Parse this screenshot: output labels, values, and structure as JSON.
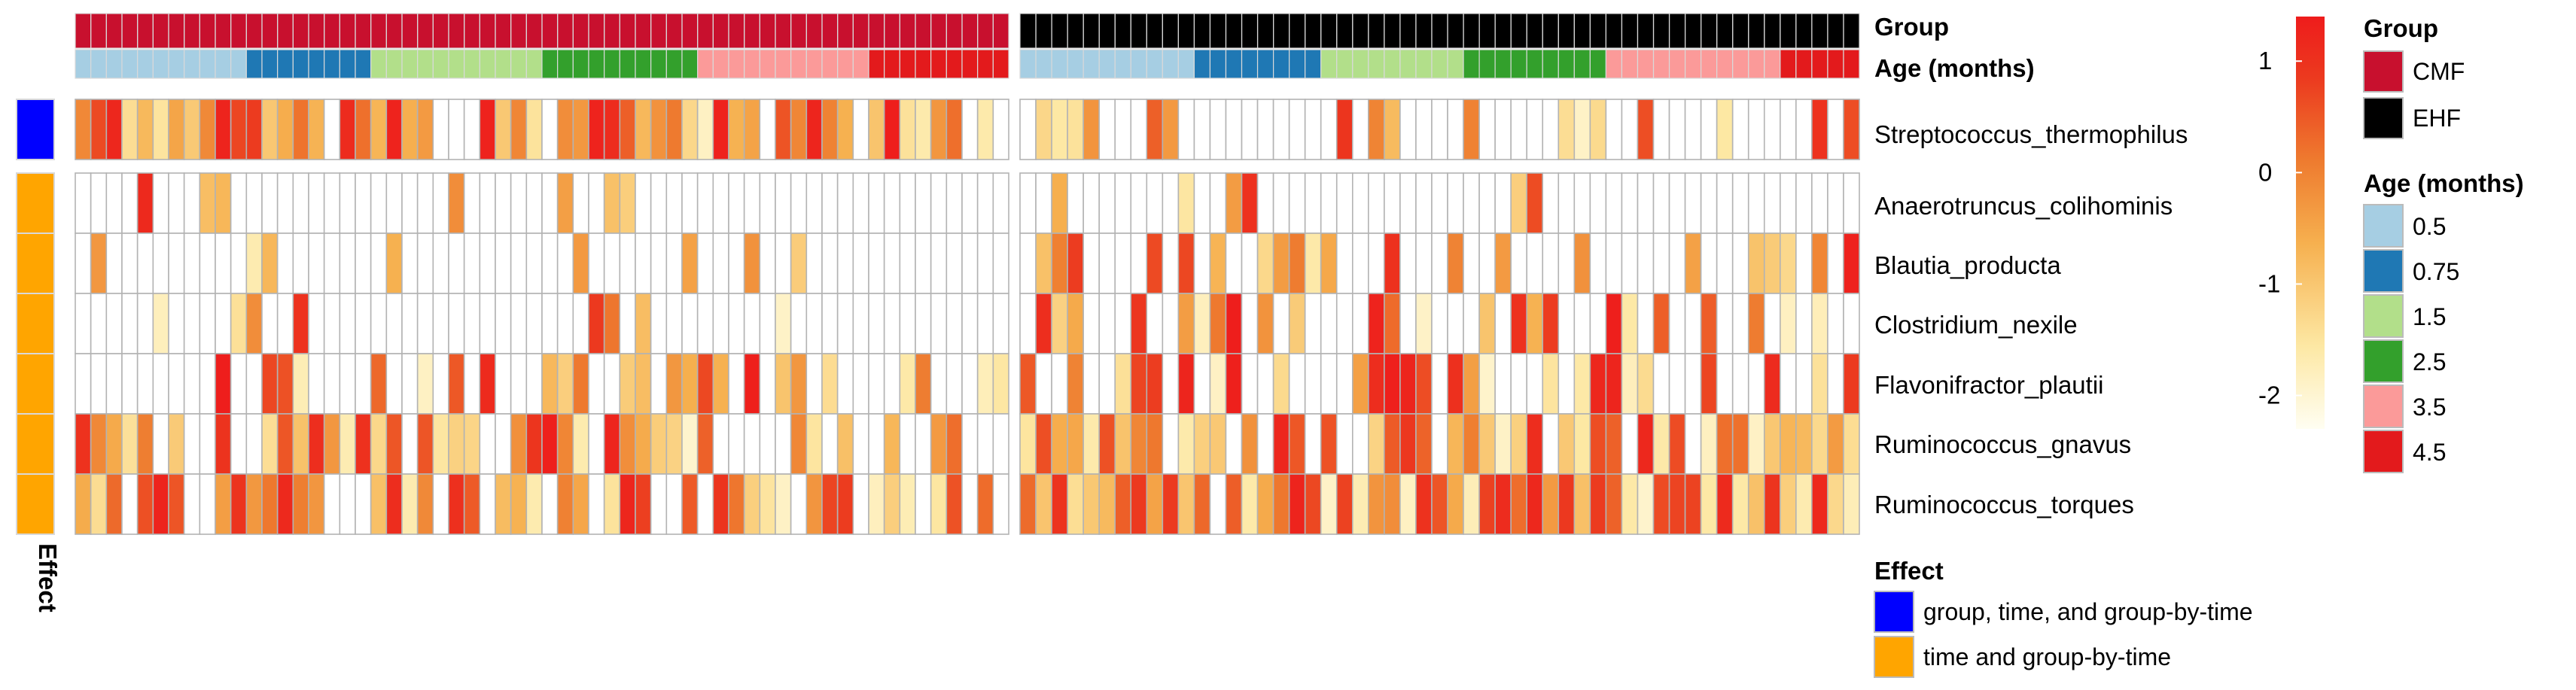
{
  "chart_data": {
    "type": "heatmap",
    "groups": [
      {
        "name": "CMF",
        "columns": 60,
        "age_counts": [
          11,
          8,
          11,
          10,
          11,
          9
        ]
      },
      {
        "name": "EHF",
        "columns": 53,
        "age_counts": [
          11,
          8,
          9,
          9,
          11,
          5
        ]
      }
    ],
    "annotation_labels": {
      "group": "Group",
      "age": "Age (months)"
    },
    "rows": [
      {
        "name": "Streptococcus_thermophilus",
        "effect": "group, time, and group-by-time",
        "cluster": 1
      },
      {
        "name": "Anaerotruncus_colihominis",
        "effect": "time and group-by-time",
        "cluster": 2
      },
      {
        "name": "Blautia_producta",
        "effect": "time and group-by-time",
        "cluster": 2
      },
      {
        "name": "Clostridium_nexile",
        "effect": "time and group-by-time",
        "cluster": 2
      },
      {
        "name": "Flavonifractor_plautii",
        "effect": "time and group-by-time",
        "cluster": 2
      },
      {
        "name": "Ruminococcus_gnavus",
        "effect": "time and group-by-time",
        "cluster": 2
      },
      {
        "name": "Ruminococcus_torques",
        "effect": "time and group-by-time",
        "cluster": 2
      }
    ],
    "color_scale": {
      "ticks": [
        1,
        0,
        -1,
        -2
      ],
      "min": -2.3,
      "max": 1.4,
      "colors": [
        "#fffef2",
        "#fde8a4",
        "#f6b04f",
        "#ee7b2f",
        "#ec3a1f",
        "#ee1c1c"
      ],
      "missing": "#ffffff"
    },
    "fill_probability": {
      "Streptococcus_thermophilus": [
        0.85,
        0.35
      ],
      "Anaerotruncus_colihominis": [
        0.08,
        0.2
      ],
      "Blautia_producta": [
        0.12,
        0.38
      ],
      "Clostridium_nexile": [
        0.18,
        0.45
      ],
      "Flavonifractor_plautii": [
        0.35,
        0.55
      ],
      "Ruminococcus_gnavus": [
        0.55,
        0.82
      ],
      "Ruminococcus_torques": [
        0.7,
        0.95
      ]
    }
  },
  "legend": {
    "group": {
      "title": "Group",
      "items": [
        {
          "label": "CMF",
          "color": "#c8102e"
        },
        {
          "label": "EHF",
          "color": "#000000"
        }
      ]
    },
    "age": {
      "title": "Age (months)",
      "items": [
        {
          "label": "0.5",
          "color": "#a6cee3"
        },
        {
          "label": "0.75",
          "color": "#1f78b4"
        },
        {
          "label": "1.5",
          "color": "#b2df8a"
        },
        {
          "label": "2.5",
          "color": "#33a02c"
        },
        {
          "label": "3.5",
          "color": "#fb9a99"
        },
        {
          "label": "4.5",
          "color": "#e31a1c"
        }
      ]
    },
    "effect": {
      "title": "Effect",
      "items": [
        {
          "label": "group, time, and group-by-time",
          "color": "#0000ff"
        },
        {
          "label": "time and group-by-time",
          "color": "#ffa500"
        }
      ]
    }
  }
}
